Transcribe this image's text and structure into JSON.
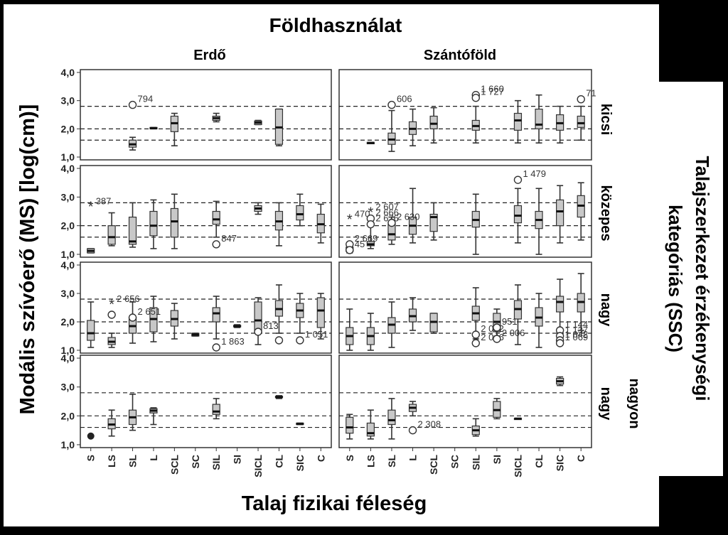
{
  "figure": {
    "title": "Földhasználat",
    "columns": [
      "Erdő",
      "Szántóföld"
    ],
    "ylabel": "Modális szívóerő (MS) [log(cm)]",
    "xlabel": "Talaj fizikai féleség",
    "right_label_lines": [
      "Talajszerkezet érzékenységi",
      "kategóriás (SSC)"
    ],
    "rows": [
      "kicsi",
      "közepes",
      "nagy",
      "nagyon nagy"
    ],
    "row4_label_lines": [
      "nagyon",
      "nagy"
    ]
  },
  "colors": {
    "box": "#c8c8c8",
    "frame": "#333333",
    "background": "#ffffff",
    "outer": "#000000"
  },
  "chart_data": {
    "type": "boxplot",
    "categories": [
      "S",
      "LS",
      "SL",
      "L",
      "SCL",
      "SC",
      "SIL",
      "SI",
      "SICL",
      "CL",
      "SIC",
      "C"
    ],
    "yticks": [
      "1,0",
      "2,0",
      "3,0",
      "4,0"
    ],
    "ylim": [
      0.9,
      4.1
    ],
    "reference_lines": [
      1.6,
      2.0,
      2.8
    ],
    "grid": false,
    "panels": [
      {
        "row": "kicsi",
        "col": "Erdő",
        "boxes": [
          {
            "cat": "SL",
            "min": 1.25,
            "q1": 1.35,
            "med": 1.45,
            "q3": 1.6,
            "max": 1.7
          },
          {
            "cat": "L",
            "min": 2.0,
            "q1": 2.0,
            "med": 2.02,
            "q3": 2.05,
            "max": 2.05
          },
          {
            "cat": "SCL",
            "min": 1.4,
            "q1": 1.9,
            "med": 2.2,
            "q3": 2.45,
            "max": 2.55
          },
          {
            "cat": "SIL",
            "min": 2.25,
            "q1": 2.3,
            "med": 2.38,
            "q3": 2.45,
            "max": 2.55
          },
          {
            "cat": "SICL",
            "min": 2.15,
            "q1": 2.15,
            "med": 2.22,
            "q3": 2.28,
            "max": 2.3
          },
          {
            "cat": "CL",
            "min": 1.4,
            "q1": 1.45,
            "med": 2.05,
            "q3": 2.7,
            "max": 2.7
          }
        ],
        "outliers": [
          {
            "cat": "SL",
            "y": 2.85,
            "marker": "circle",
            "label": "794"
          }
        ]
      },
      {
        "row": "kicsi",
        "col": "Szántóföld",
        "boxes": [
          {
            "cat": "LS",
            "min": 1.48,
            "q1": 1.48,
            "med": 1.5,
            "q3": 1.52,
            "max": 1.52
          },
          {
            "cat": "SL",
            "min": 1.2,
            "q1": 1.45,
            "med": 1.62,
            "q3": 1.85,
            "max": 2.65
          },
          {
            "cat": "L",
            "min": 1.4,
            "q1": 1.8,
            "med": 2.0,
            "q3": 2.25,
            "max": 2.7
          },
          {
            "cat": "SCL",
            "min": 1.5,
            "q1": 2.0,
            "med": 2.18,
            "q3": 2.45,
            "max": 2.75
          },
          {
            "cat": "SIL",
            "min": 1.5,
            "q1": 1.95,
            "med": 2.1,
            "q3": 2.3,
            "max": 2.8
          },
          {
            "cat": "SICL",
            "min": 1.5,
            "q1": 1.95,
            "med": 2.3,
            "q3": 2.55,
            "max": 3.0
          },
          {
            "cat": "CL",
            "min": 1.5,
            "q1": 2.0,
            "med": 2.15,
            "q3": 2.7,
            "max": 3.2
          },
          {
            "cat": "SIC",
            "min": 1.5,
            "q1": 1.95,
            "med": 2.2,
            "q3": 2.5,
            "max": 2.8
          },
          {
            "cat": "C",
            "min": 1.6,
            "q1": 2.05,
            "med": 2.2,
            "q3": 2.45,
            "max": 2.8
          }
        ],
        "outliers": [
          {
            "cat": "SL",
            "y": 2.85,
            "marker": "circle",
            "label": "606"
          },
          {
            "cat": "SIL",
            "y": 3.2,
            "marker": "circle",
            "label": "1 660"
          },
          {
            "cat": "SIL",
            "y": 3.1,
            "marker": "circle",
            "label": "1 727"
          },
          {
            "cat": "C",
            "y": 3.05,
            "marker": "circle",
            "label": "71"
          }
        ]
      },
      {
        "row": "közepes",
        "col": "Erdő",
        "boxes": [
          {
            "cat": "S",
            "min": 1.05,
            "q1": 1.05,
            "med": 1.12,
            "q3": 1.2,
            "max": 1.2
          },
          {
            "cat": "LS",
            "min": 1.3,
            "q1": 1.35,
            "med": 1.6,
            "q3": 2.0,
            "max": 2.45
          },
          {
            "cat": "SL",
            "min": 1.25,
            "q1": 1.35,
            "med": 1.45,
            "q3": 2.3,
            "max": 2.8
          },
          {
            "cat": "L",
            "min": 1.2,
            "q1": 1.65,
            "med": 2.0,
            "q3": 2.5,
            "max": 2.9
          },
          {
            "cat": "SCL",
            "min": 1.2,
            "q1": 1.6,
            "med": 2.15,
            "q3": 2.6,
            "max": 3.1
          },
          {
            "cat": "SIL",
            "min": 1.6,
            "q1": 2.05,
            "med": 2.22,
            "q3": 2.5,
            "max": 2.85
          },
          {
            "cat": "SICL",
            "min": 2.4,
            "q1": 2.5,
            "med": 2.6,
            "q3": 2.7,
            "max": 2.8
          },
          {
            "cat": "CL",
            "min": 1.3,
            "q1": 1.85,
            "med": 2.15,
            "q3": 2.5,
            "max": 2.8
          },
          {
            "cat": "SIC",
            "min": 2.0,
            "q1": 2.2,
            "med": 2.4,
            "q3": 2.7,
            "max": 3.1
          },
          {
            "cat": "C",
            "min": 1.4,
            "q1": 1.75,
            "med": 2.05,
            "q3": 2.4,
            "max": 2.75
          }
        ],
        "outliers": [
          {
            "cat": "S",
            "y": 2.65,
            "marker": "star",
            "label": "387"
          },
          {
            "cat": "SIL",
            "y": 1.35,
            "marker": "circle",
            "label": "847"
          }
        ]
      },
      {
        "row": "közepes",
        "col": "Szántóföld",
        "boxes": [
          {
            "cat": "S",
            "min": 1.05,
            "q1": 1.1,
            "med": 1.15,
            "q3": 1.25,
            "max": 1.3
          },
          {
            "cat": "LS",
            "min": 1.2,
            "q1": 1.3,
            "med": 1.35,
            "q3": 1.45,
            "max": 2.3
          },
          {
            "cat": "SL",
            "min": 1.35,
            "q1": 1.5,
            "med": 1.7,
            "q3": 2.05,
            "max": 2.3
          },
          {
            "cat": "L",
            "min": 1.4,
            "q1": 1.7,
            "med": 2.0,
            "q3": 2.3,
            "max": 3.3
          },
          {
            "cat": "SCL",
            "min": 1.5,
            "q1": 1.8,
            "med": 2.3,
            "q3": 2.4,
            "max": 2.8
          },
          {
            "cat": "SIL",
            "min": 1.0,
            "q1": 1.95,
            "med": 2.2,
            "q3": 2.5,
            "max": 3.1
          },
          {
            "cat": "SICL",
            "min": 1.4,
            "q1": 2.1,
            "med": 2.35,
            "q3": 2.7,
            "max": 3.3
          },
          {
            "cat": "CL",
            "min": 1.0,
            "q1": 1.9,
            "med": 2.2,
            "q3": 2.5,
            "max": 3.3
          },
          {
            "cat": "SIC",
            "min": 1.4,
            "q1": 2.0,
            "med": 2.5,
            "q3": 2.9,
            "max": 3.4
          },
          {
            "cat": "C",
            "min": 1.5,
            "q1": 2.3,
            "med": 2.7,
            "q3": 3.05,
            "max": 3.5
          }
        ],
        "outliers": [
          {
            "cat": "S",
            "y": 2.2,
            "marker": "star",
            "label": "470"
          },
          {
            "cat": "S",
            "y": 1.35,
            "marker": "circle",
            "label": "2 669"
          },
          {
            "cat": "S",
            "y": 1.15,
            "marker": "circle",
            "label": "45"
          },
          {
            "cat": "LS",
            "y": 2.45,
            "marker": "star",
            "label": "2 607"
          },
          {
            "cat": "LS",
            "y": 2.25,
            "marker": "circle",
            "label": "2 666"
          },
          {
            "cat": "LS",
            "y": 2.05,
            "marker": "circle",
            "label": "2 676"
          },
          {
            "cat": "SL",
            "y": 2.1,
            "marker": "circle",
            "label": "2 630"
          },
          {
            "cat": "SICL",
            "y": 3.6,
            "marker": "circle",
            "label": "1 479"
          }
        ]
      },
      {
        "row": "nagy",
        "col": "Erdő",
        "boxes": [
          {
            "cat": "S",
            "min": 1.1,
            "q1": 1.35,
            "med": 1.6,
            "q3": 2.05,
            "max": 2.7
          },
          {
            "cat": "LS",
            "min": 1.1,
            "q1": 1.2,
            "med": 1.3,
            "q3": 1.45,
            "max": 1.6
          },
          {
            "cat": "SL",
            "min": 1.25,
            "q1": 1.6,
            "med": 1.85,
            "q3": 2.15,
            "max": 2.7
          },
          {
            "cat": "L",
            "min": 1.3,
            "q1": 1.65,
            "med": 2.1,
            "q3": 2.5,
            "max": 2.9
          },
          {
            "cat": "SCL",
            "min": 1.4,
            "q1": 1.85,
            "med": 2.1,
            "q3": 2.4,
            "max": 2.65
          },
          {
            "cat": "SC",
            "min": 1.5,
            "q1": 1.5,
            "med": 1.55,
            "q3": 1.6,
            "max": 1.6
          },
          {
            "cat": "SIL",
            "min": 1.4,
            "q1": 2.0,
            "med": 2.3,
            "q3": 2.5,
            "max": 2.9
          },
          {
            "cat": "SI",
            "min": 1.8,
            "q1": 1.82,
            "med": 1.85,
            "q3": 1.88,
            "max": 1.9
          },
          {
            "cat": "SICL",
            "min": 1.2,
            "q1": 1.6,
            "med": 2.05,
            "q3": 2.7,
            "max": 2.85
          },
          {
            "cat": "CL",
            "min": 1.6,
            "q1": 2.2,
            "med": 2.45,
            "q3": 2.75,
            "max": 3.3
          },
          {
            "cat": "SIC",
            "min": 1.6,
            "q1": 2.15,
            "med": 2.4,
            "q3": 2.65,
            "max": 3.0
          },
          {
            "cat": "C",
            "min": 1.4,
            "q1": 1.8,
            "med": 2.4,
            "q3": 2.85,
            "max": 3.0
          }
        ],
        "outliers": [
          {
            "cat": "LS",
            "y": 2.6,
            "marker": "star",
            "label": "2 656"
          },
          {
            "cat": "LS",
            "y": 2.25,
            "marker": "circle"
          },
          {
            "cat": "SL",
            "y": 2.15,
            "marker": "circle",
            "label": "2 651"
          },
          {
            "cat": "SIL",
            "y": 1.1,
            "marker": "circle",
            "label": "1 863"
          },
          {
            "cat": "SICL",
            "y": 1.65,
            "marker": "circle",
            "label": "813"
          },
          {
            "cat": "CL",
            "y": 1.35,
            "marker": "circle"
          },
          {
            "cat": "SIC",
            "y": 1.35,
            "marker": "circle",
            "label": "1 051"
          }
        ]
      },
      {
        "row": "nagy",
        "col": "Szántóföld",
        "boxes": [
          {
            "cat": "S",
            "min": 1.0,
            "q1": 1.2,
            "med": 1.5,
            "q3": 1.8,
            "max": 2.45
          },
          {
            "cat": "LS",
            "min": 1.0,
            "q1": 1.2,
            "med": 1.5,
            "q3": 1.8,
            "max": 2.3
          },
          {
            "cat": "SL",
            "min": 1.1,
            "q1": 1.6,
            "med": 1.9,
            "q3": 2.15,
            "max": 2.7
          },
          {
            "cat": "L",
            "min": 1.7,
            "q1": 2.0,
            "med": 2.2,
            "q3": 2.45,
            "max": 2.85
          },
          {
            "cat": "SCL",
            "min": 1.6,
            "q1": 1.65,
            "med": 2.0,
            "q3": 2.3,
            "max": 2.3
          },
          {
            "cat": "SIL",
            "min": 1.4,
            "q1": 2.05,
            "med": 2.3,
            "q3": 2.55,
            "max": 3.2
          },
          {
            "cat": "SI",
            "min": 1.5,
            "q1": 1.65,
            "med": 2.0,
            "q3": 2.3,
            "max": 2.45
          },
          {
            "cat": "SICL",
            "min": 1.2,
            "q1": 2.1,
            "med": 2.45,
            "q3": 2.75,
            "max": 3.3
          },
          {
            "cat": "CL",
            "min": 1.1,
            "q1": 1.85,
            "med": 2.15,
            "q3": 2.5,
            "max": 3.0
          },
          {
            "cat": "SIC",
            "min": 1.6,
            "q1": 2.35,
            "med": 2.7,
            "q3": 2.9,
            "max": 3.5
          },
          {
            "cat": "C",
            "min": 1.7,
            "q1": 2.35,
            "med": 2.7,
            "q3": 3.0,
            "max": 3.7
          }
        ],
        "outliers": [
          {
            "cat": "SIL",
            "y": 1.55,
            "marker": "circle",
            "label": "2 032"
          },
          {
            "cat": "SIL",
            "y": 1.25,
            "marker": "circle",
            "label": "2 046"
          },
          {
            "cat": "SI",
            "y": 1.8,
            "marker": "circle",
            "label": "951"
          },
          {
            "cat": "SI",
            "y": 1.4,
            "marker": "circle",
            "label": "2 006"
          },
          {
            "cat": "SIC",
            "y": 1.7,
            "marker": "circle",
            "label": "1 144"
          },
          {
            "cat": "SIC",
            "y": 1.5,
            "marker": "circle",
            "label": "1 137"
          },
          {
            "cat": "SIC",
            "y": 1.35,
            "marker": "circle",
            "label": "1 042"
          },
          {
            "cat": "SIC",
            "y": 1.25,
            "marker": "circle",
            "label": "1 069"
          }
        ]
      },
      {
        "row": "nagyon nagy",
        "col": "Erdő",
        "boxes": [
          {
            "cat": "LS",
            "min": 1.3,
            "q1": 1.55,
            "med": 1.7,
            "q3": 1.9,
            "max": 2.2
          },
          {
            "cat": "SL",
            "min": 1.5,
            "q1": 1.7,
            "med": 1.95,
            "q3": 2.2,
            "max": 2.75
          },
          {
            "cat": "L",
            "min": 1.7,
            "q1": 2.1,
            "med": 2.18,
            "q3": 2.25,
            "max": 2.28
          },
          {
            "cat": "SIL",
            "min": 1.9,
            "q1": 2.05,
            "med": 2.15,
            "q3": 2.4,
            "max": 2.6
          },
          {
            "cat": "CL",
            "min": 2.6,
            "q1": 2.65,
            "med": 2.65,
            "q3": 2.68,
            "max": 2.7
          },
          {
            "cat": "SIC",
            "min": 1.7,
            "q1": 1.7,
            "med": 1.72,
            "q3": 1.75,
            "max": 1.75
          }
        ],
        "outliers": [
          {
            "cat": "S",
            "y": 1.3,
            "marker": "dot"
          }
        ]
      },
      {
        "row": "nagyon nagy",
        "col": "Szántóföld",
        "boxes": [
          {
            "cat": "S",
            "min": 1.2,
            "q1": 1.4,
            "med": 1.6,
            "q3": 1.95,
            "max": 2.05
          },
          {
            "cat": "LS",
            "min": 1.2,
            "q1": 1.3,
            "med": 1.4,
            "q3": 1.75,
            "max": 2.2
          },
          {
            "cat": "SL",
            "min": 1.2,
            "q1": 1.7,
            "med": 1.85,
            "q3": 2.2,
            "max": 2.6
          },
          {
            "cat": "L",
            "min": 2.0,
            "q1": 2.15,
            "med": 2.28,
            "q3": 2.4,
            "max": 2.5
          },
          {
            "cat": "SIL",
            "min": 1.3,
            "q1": 1.35,
            "med": 1.5,
            "q3": 1.65,
            "max": 1.9
          },
          {
            "cat": "SI",
            "min": 1.9,
            "q1": 1.95,
            "med": 2.2,
            "q3": 2.5,
            "max": 2.6
          },
          {
            "cat": "SICL",
            "min": 1.88,
            "q1": 1.88,
            "med": 1.9,
            "q3": 1.92,
            "max": 1.92
          },
          {
            "cat": "SIC",
            "min": 3.05,
            "q1": 3.1,
            "med": 3.2,
            "q3": 3.3,
            "max": 3.35
          }
        ],
        "outliers": [
          {
            "cat": "L",
            "y": 1.5,
            "marker": "circle",
            "label": "2 308"
          }
        ]
      }
    ]
  }
}
